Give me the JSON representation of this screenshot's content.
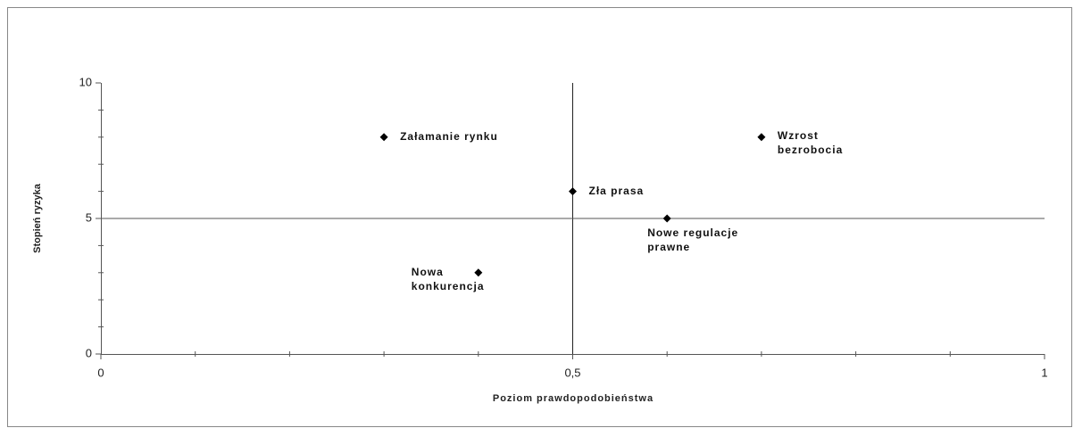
{
  "chart_data": {
    "type": "scatter",
    "x_label": "Poziom prawdopodobieństwa",
    "y_label": "Stopień ryzyka",
    "labels": [
      "Załamanie rynku",
      "Wzrost bezrobocia",
      "Zła prasa",
      "Nowe regulacje prawne",
      "Nowa konkurencja"
    ],
    "x": [
      0.3,
      0.7,
      0.5,
      0.6,
      0.4
    ],
    "y": [
      8,
      8,
      6,
      5,
      3
    ],
    "color": "#000000",
    "xlim": [
      0,
      1
    ],
    "ylim": [
      0,
      10
    ],
    "xticks": [
      0,
      {
        "value": 0.5,
        "label": "0,5"
      },
      1
    ],
    "yticks": [
      0,
      5,
      10
    ],
    "xminor_ticks": [
      0.1,
      0.2,
      0.3,
      0.4,
      0.6,
      0.7,
      0.8,
      0.9
    ],
    "yminor_ticks": [
      1,
      2,
      3,
      4,
      6,
      7,
      8,
      9
    ],
    "reference_lines": {
      "x": 0.5,
      "y": 5
    }
  }
}
